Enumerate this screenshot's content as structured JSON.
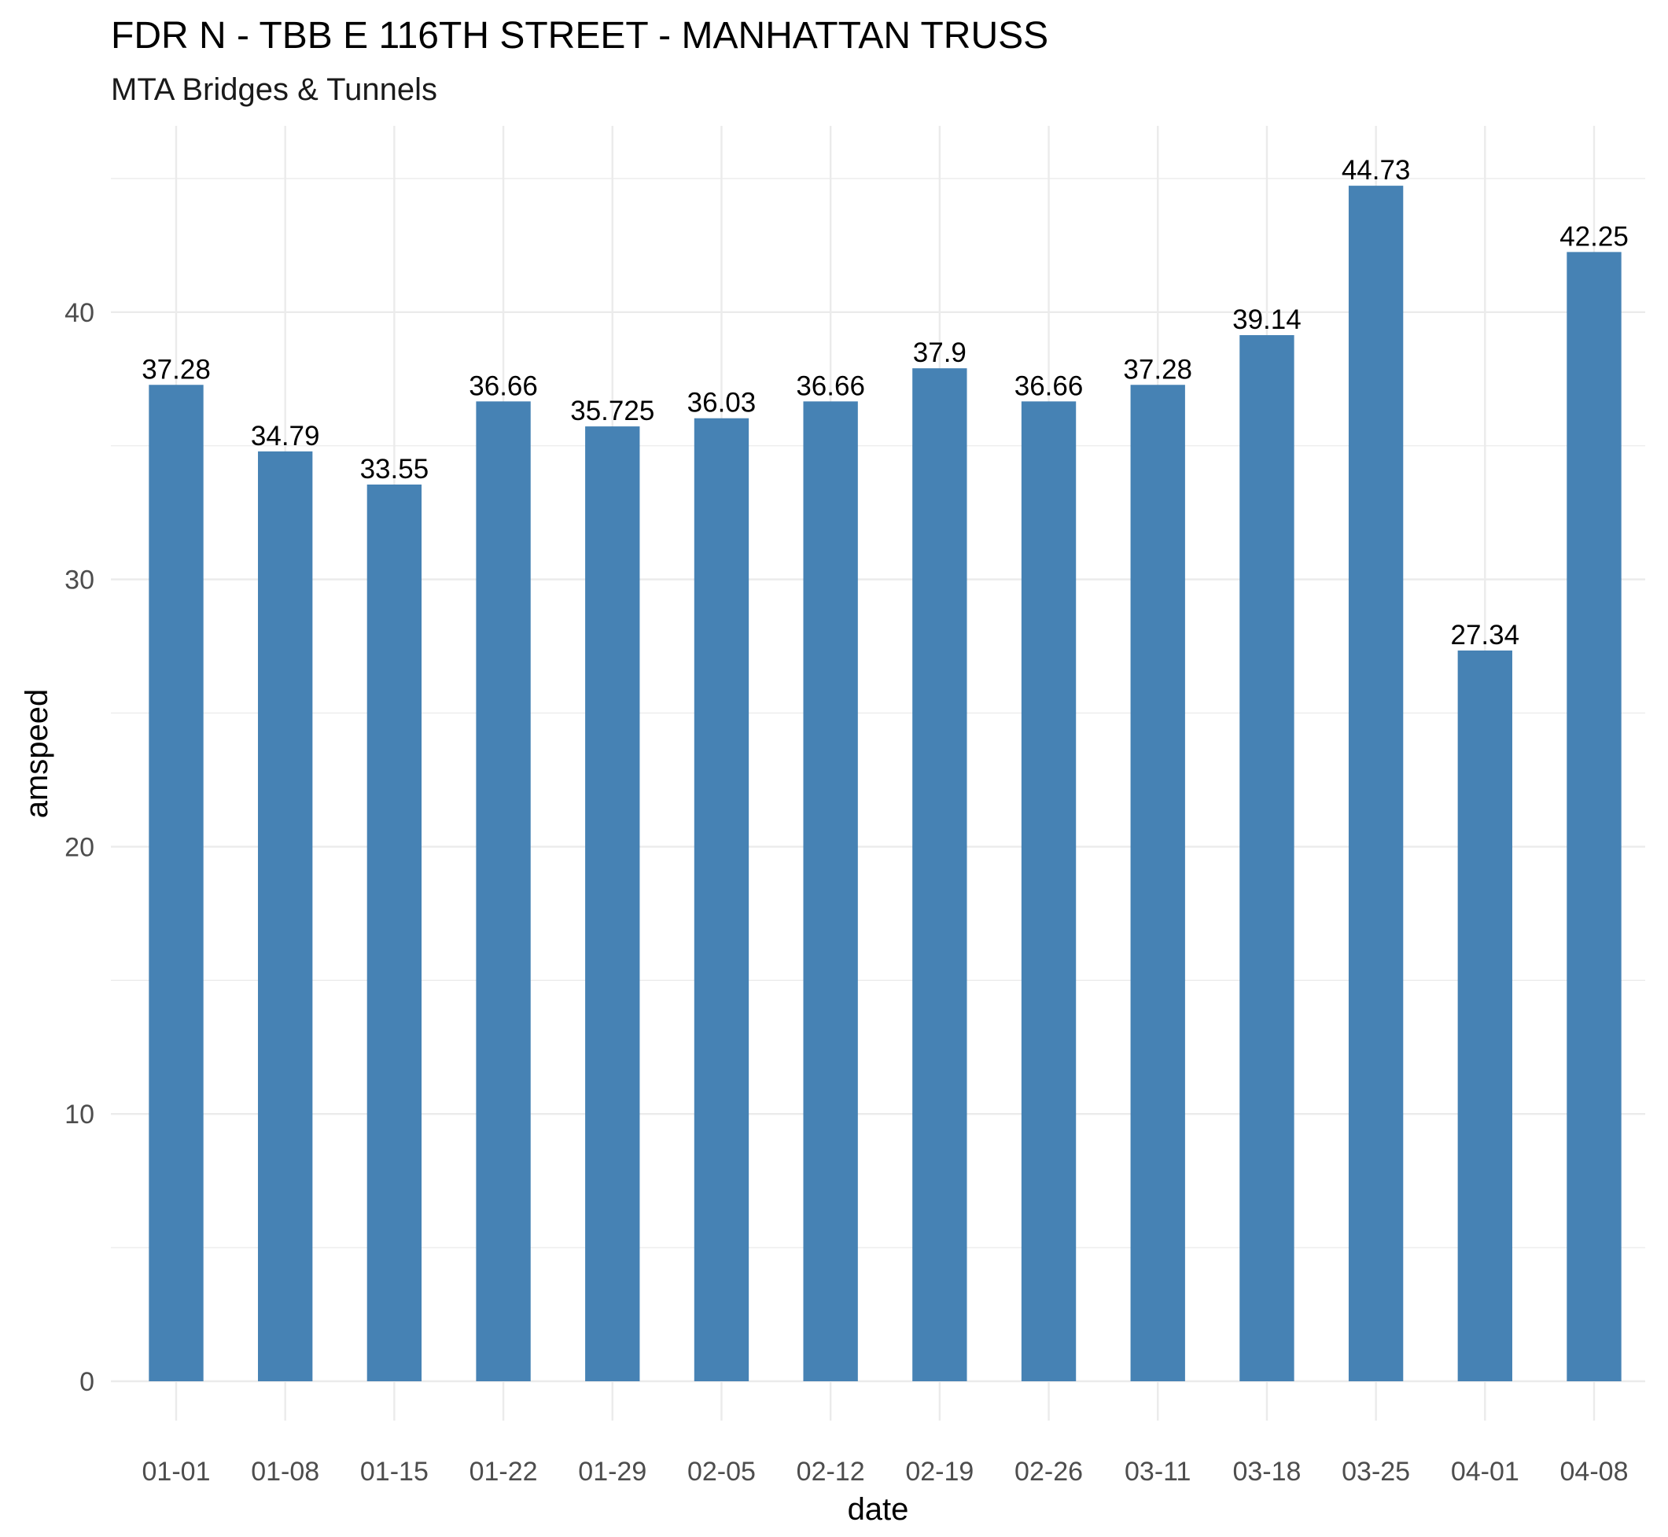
{
  "chart_data": {
    "type": "bar",
    "title": "FDR N - TBB E 116TH STREET - MANHATTAN TRUSS",
    "subtitle": "MTA Bridges & Tunnels",
    "xlabel": "date",
    "ylabel": "amspeed",
    "categories": [
      "01-01",
      "01-08",
      "01-15",
      "01-22",
      "01-29",
      "02-05",
      "02-12",
      "02-19",
      "02-26",
      "03-11",
      "03-18",
      "03-25",
      "04-01",
      "04-08"
    ],
    "values": [
      37.28,
      34.79,
      33.55,
      36.66,
      35.725,
      36.03,
      36.66,
      37.9,
      36.66,
      37.28,
      39.14,
      44.73,
      27.34,
      42.25
    ],
    "value_labels": [
      "37.28",
      "34.79",
      "33.55",
      "36.66",
      "35.725",
      "36.03",
      "36.66",
      "37.9",
      "36.66",
      "37.28",
      "39.14",
      "44.73",
      "27.34",
      "42.25"
    ],
    "y_ticks": [
      0,
      10,
      20,
      30,
      40
    ],
    "ylim": [
      0,
      46.97
    ],
    "grid": true,
    "legend": "none",
    "bar_color": "#4682b4",
    "grid_color": "#ebebeb"
  }
}
